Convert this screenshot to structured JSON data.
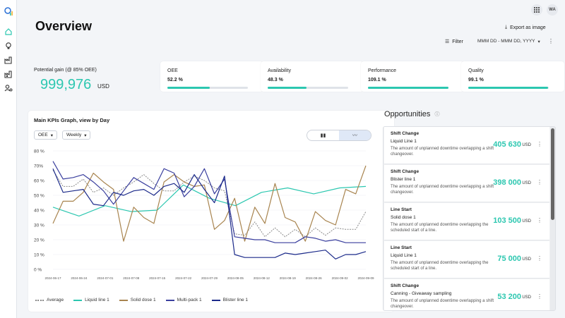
{
  "header": {
    "title": "Overview",
    "export_label": "Export as image",
    "filter_label": "Filter",
    "date_range": "MMM DD - MMM DD, YYYY",
    "avatar_initials": "WA"
  },
  "sidebar": {
    "items": [
      "logo",
      "home",
      "ideas",
      "factory",
      "factory-alt",
      "user-settings"
    ]
  },
  "potential": {
    "label": "Potential gain (@ 85% OEE)",
    "value": "999,976",
    "unit": "USD"
  },
  "kpis": [
    {
      "name": "OEE",
      "value": "52.2 %",
      "fraction": 0.522
    },
    {
      "name": "Availability",
      "value": "48.3 %",
      "fraction": 0.483
    },
    {
      "name": "Performance",
      "value": "109.1 %",
      "fraction": 1.0
    },
    {
      "name": "Quality",
      "value": "99.1 %",
      "fraction": 0.991
    }
  ],
  "graph": {
    "title": "Main KPIs Graph, view by Day",
    "metric_select": "OEE",
    "period_select": "Weekly"
  },
  "colors": {
    "accent": "#2cc7b0",
    "average": "#8a8a8a",
    "liquid": "#2cc7b0",
    "solid": "#a8844f",
    "multi": "#3a3f9e",
    "blister": "#1b2a8a"
  },
  "chart_data": {
    "type": "line",
    "y_ticks": [
      "80 %",
      "70%",
      "60 %",
      "50 %",
      "40 %",
      "30 %",
      "20 %",
      "10 %",
      "0 %"
    ],
    "x_ticks": [
      "2024-06-17",
      "2024-06-24",
      "2024-07-01",
      "2024-07-08",
      "2024-07-15",
      "2024-07-22",
      "2024-07-29",
      "2024-08-05",
      "2024-08-12",
      "2024-08-19",
      "2024-08-26",
      "2024-09-02",
      "2024-09-09"
    ],
    "ylim": [
      0,
      80
    ],
    "legend": [
      "Average",
      "Liquid line 1",
      "Solid dose 1",
      "Multi-pack 1",
      "Blister line 1"
    ],
    "series": [
      {
        "name": "Average",
        "values": [
          67,
          56,
          56,
          61,
          52,
          55,
          50,
          55,
          59,
          64,
          58,
          53,
          53,
          59,
          63,
          60,
          55,
          53,
          24,
          23,
          32,
          22,
          28,
          22,
          27,
          22,
          28,
          23,
          28,
          27,
          27,
          39
        ]
      },
      {
        "name": "Liquid line 1",
        "x_index": [
          0,
          2,
          4,
          6,
          8,
          10,
          12,
          14,
          16,
          18,
          20,
          22,
          24
        ],
        "values": [
          42,
          36,
          43,
          39,
          40,
          57,
          48,
          43,
          52,
          55,
          51,
          55,
          56
        ]
      },
      {
        "name": "Solid dose 1",
        "values": [
          31,
          46,
          46,
          52,
          65,
          59,
          54,
          19,
          42,
          35,
          31,
          59,
          64,
          59,
          56,
          57,
          27,
          33,
          48,
          19,
          42,
          31,
          58,
          35,
          32,
          19,
          39,
          33,
          30,
          54,
          51,
          70
        ]
      },
      {
        "name": "Multi-pack 1",
        "values": [
          73,
          61,
          62,
          64,
          59,
          53,
          44,
          53,
          62,
          58,
          54,
          68,
          65,
          49,
          56,
          68,
          51,
          61,
          22,
          21,
          20,
          20,
          18,
          18,
          18,
          22,
          21,
          19,
          20,
          18,
          18,
          18
        ]
      },
      {
        "name": "Blister line 1",
        "values": [
          68,
          52,
          53,
          54,
          44,
          43,
          52,
          50,
          53,
          54,
          50,
          56,
          58,
          52,
          64,
          54,
          45,
          63,
          10,
          8,
          8,
          8,
          8,
          11,
          10,
          11,
          12,
          13,
          7,
          10,
          10,
          12
        ]
      }
    ]
  },
  "opportunities": {
    "title": "Opportunities",
    "items": [
      {
        "title": "Shift Change",
        "subtitle": "Liquid Line 1",
        "desc": "The amount of unplanned downtime overlapping a shift changeover.",
        "value": "405 630",
        "unit": "USD"
      },
      {
        "title": "Shift Change",
        "subtitle": "Blister line 1",
        "desc": "The amount of unplanned downtime overlapping a shift changeover.",
        "value": "398 000",
        "unit": "USD"
      },
      {
        "title": "Line Start",
        "subtitle": "Solid dose 1",
        "desc": "The amount of unplanned downtime overlapping the scheduled start of a line.",
        "value": "103 500",
        "unit": "USD"
      },
      {
        "title": "Line Start",
        "subtitle": "Liquid Line 1",
        "desc": "The amount of unplanned downtime overlapping the scheduled start of a line.",
        "value": "75 000",
        "unit": "USD"
      },
      {
        "title": "Shift Change",
        "subtitle": "Canning - Giveaway sampling",
        "desc": "The amount of unplanned downtime overlapping a shift changeover.",
        "value": "53 200",
        "unit": "USD"
      }
    ]
  }
}
